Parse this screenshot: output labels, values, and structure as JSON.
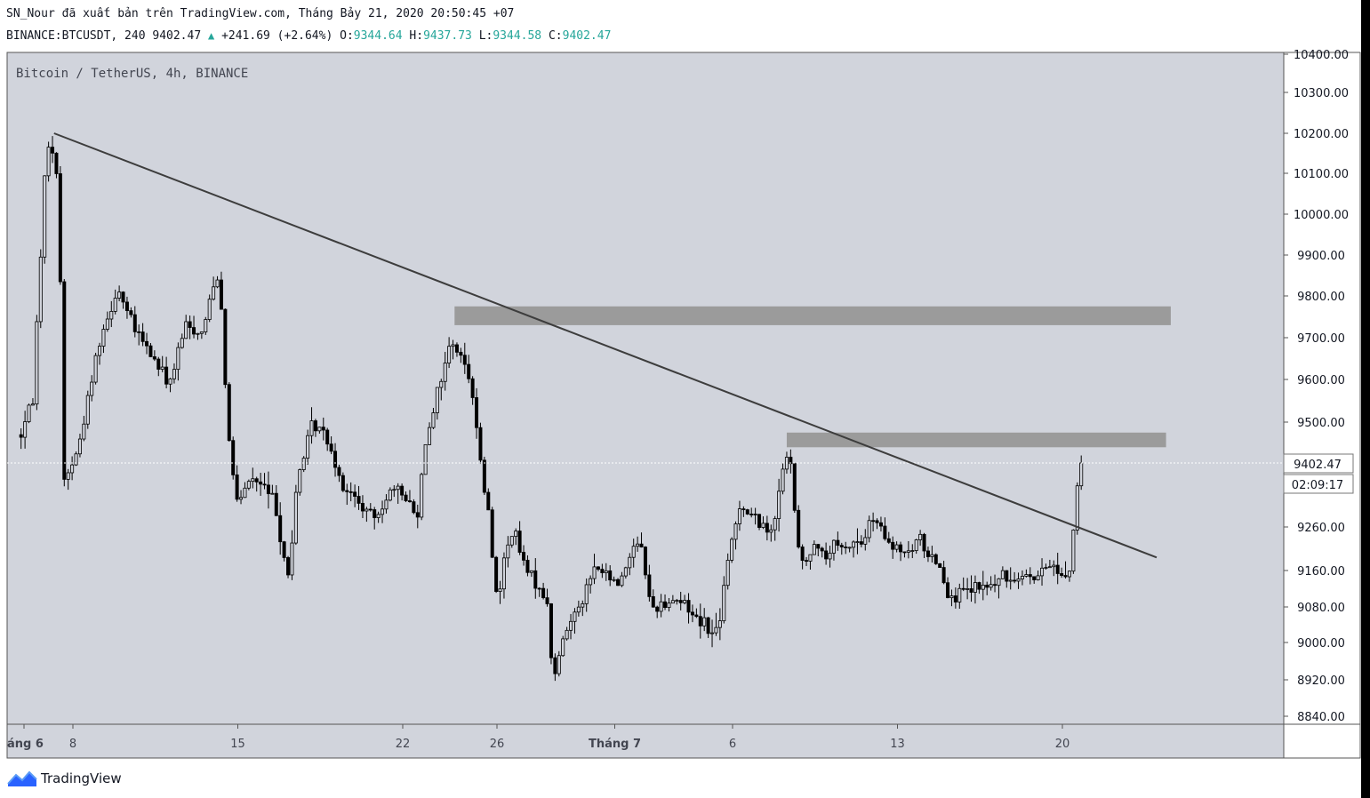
{
  "header": {
    "publisher_line": "SN_Nour đã xuất bản trên TradingView.com, Tháng Bảy 21, 2020 20:50:45 +07",
    "symbol": "BINANCE:BTCUSDT, 240",
    "last": "9402.47",
    "change": "+241.69 (+2.64%)",
    "open_label": "O:",
    "open": "9344.64",
    "high_label": "H:",
    "high": "9437.73",
    "low_label": "L:",
    "low": "9344.58",
    "close_label": "C:",
    "close": "9402.47"
  },
  "chart_label": "Bitcoin / TetherUS, 4h, BINANCE",
  "price_tag": "9402.47",
  "countdown_tag": "02:09:17",
  "brand": "TradingView",
  "colors": {
    "background": "#d1d4dc",
    "candle": "#000000",
    "zone": "#9b9b9b",
    "trendline": "#3d3d3d"
  },
  "chart_data": {
    "type": "candlestick",
    "title": "Bitcoin / TetherUS, 4h, BINANCE",
    "ylim": [
      8820,
      10410
    ],
    "y_ticks": [
      "10400.00",
      "10300.00",
      "10200.00",
      "10100.00",
      "10000.00",
      "9900.00",
      "9800.00",
      "9700.00",
      "9600.00",
      "9500.00",
      "9260.00",
      "9160.00",
      "9080.00",
      "9000.00",
      "8920.00",
      "8840.00"
    ],
    "x_ticks": [
      {
        "label": "áng 6",
        "day": 0
      },
      {
        "label": "8",
        "day": 2
      },
      {
        "label": "15",
        "day": 9
      },
      {
        "label": "22",
        "day": 16
      },
      {
        "label": "26",
        "day": 20
      },
      {
        "label": "Tháng 7",
        "day": 25
      },
      {
        "label": "6",
        "day": 30
      },
      {
        "label": "13",
        "day": 37
      },
      {
        "label": "20",
        "day": 44
      }
    ],
    "close_path": [
      [
        -0.2,
        9470
      ],
      [
        0.3,
        9560
      ],
      [
        0.9,
        10190
      ],
      [
        1.4,
        10080
      ],
      [
        1.6,
        9360
      ],
      [
        2.2,
        9430
      ],
      [
        3.1,
        9690
      ],
      [
        3.9,
        9820
      ],
      [
        4.6,
        9720
      ],
      [
        5.3,
        9660
      ],
      [
        6.1,
        9590
      ],
      [
        6.8,
        9730
      ],
      [
        7.5,
        9710
      ],
      [
        8.1,
        9870
      ],
      [
        8.3,
        9770
      ],
      [
        8.6,
        9460
      ],
      [
        9.0,
        9300
      ],
      [
        9.5,
        9370
      ],
      [
        10.1,
        9350
      ],
      [
        10.6,
        9310
      ],
      [
        11.0,
        9180
      ],
      [
        11.2,
        9140
      ],
      [
        11.5,
        9360
      ],
      [
        12.2,
        9500
      ],
      [
        12.8,
        9460
      ],
      [
        13.4,
        9360
      ],
      [
        14.3,
        9300
      ],
      [
        14.8,
        9280
      ],
      [
        15.4,
        9340
      ],
      [
        16.1,
        9330
      ],
      [
        16.6,
        9280
      ],
      [
        17.0,
        9470
      ],
      [
        17.6,
        9600
      ],
      [
        18.1,
        9700
      ],
      [
        18.4,
        9660
      ],
      [
        18.9,
        9600
      ],
      [
        19.3,
        9400
      ],
      [
        19.7,
        9260
      ],
      [
        20.0,
        9090
      ],
      [
        20.3,
        9180
      ],
      [
        20.7,
        9260
      ],
      [
        21.2,
        9160
      ],
      [
        21.6,
        9140
      ],
      [
        22.1,
        9100
      ],
      [
        22.4,
        8910
      ],
      [
        22.7,
        8990
      ],
      [
        23.2,
        9060
      ],
      [
        23.7,
        9110
      ],
      [
        24.2,
        9170
      ],
      [
        24.6,
        9150
      ],
      [
        25.1,
        9130
      ],
      [
        25.5,
        9170
      ],
      [
        25.9,
        9240
      ],
      [
        26.2,
        9200
      ],
      [
        26.5,
        9080
      ],
      [
        26.9,
        9080
      ],
      [
        27.4,
        9100
      ],
      [
        27.9,
        9090
      ],
      [
        28.4,
        9060
      ],
      [
        28.8,
        9050
      ],
      [
        29.2,
        9010
      ],
      [
        29.5,
        9070
      ],
      [
        29.9,
        9210
      ],
      [
        30.3,
        9310
      ],
      [
        30.7,
        9290
      ],
      [
        31.1,
        9270
      ],
      [
        31.5,
        9250
      ],
      [
        31.9,
        9300
      ],
      [
        32.2,
        9420
      ],
      [
        32.5,
        9390
      ],
      [
        32.8,
        9200
      ],
      [
        33.1,
        9170
      ],
      [
        33.5,
        9240
      ],
      [
        33.9,
        9180
      ],
      [
        34.3,
        9220
      ],
      [
        34.7,
        9200
      ],
      [
        35.1,
        9230
      ],
      [
        35.5,
        9220
      ],
      [
        35.9,
        9280
      ],
      [
        36.3,
        9250
      ],
      [
        36.7,
        9210
      ],
      [
        37.1,
        9210
      ],
      [
        37.5,
        9190
      ],
      [
        37.9,
        9240
      ],
      [
        38.3,
        9200
      ],
      [
        38.7,
        9180
      ],
      [
        39.1,
        9120
      ],
      [
        39.5,
        9100
      ],
      [
        39.9,
        9110
      ],
      [
        40.3,
        9120
      ],
      [
        40.7,
        9120
      ],
      [
        41.1,
        9130
      ],
      [
        41.5,
        9150
      ],
      [
        41.9,
        9140
      ],
      [
        42.3,
        9160
      ],
      [
        42.7,
        9140
      ],
      [
        43.1,
        9150
      ],
      [
        43.5,
        9180
      ],
      [
        43.9,
        9150
      ],
      [
        44.3,
        9160
      ],
      [
        44.6,
        9340
      ],
      [
        44.85,
        9402.47
      ]
    ],
    "trendline": {
      "from": [
        1.2,
        10200
      ],
      "to": [
        48,
        9190
      ]
    },
    "zones": [
      {
        "x_start": 18.2,
        "x_end": 48.6,
        "y_low": 9730,
        "y_high": 9775
      },
      {
        "x_start": 32.3,
        "x_end": 48.4,
        "y_low": 9440,
        "y_high": 9475
      }
    ],
    "last_price": 9402.47
  }
}
